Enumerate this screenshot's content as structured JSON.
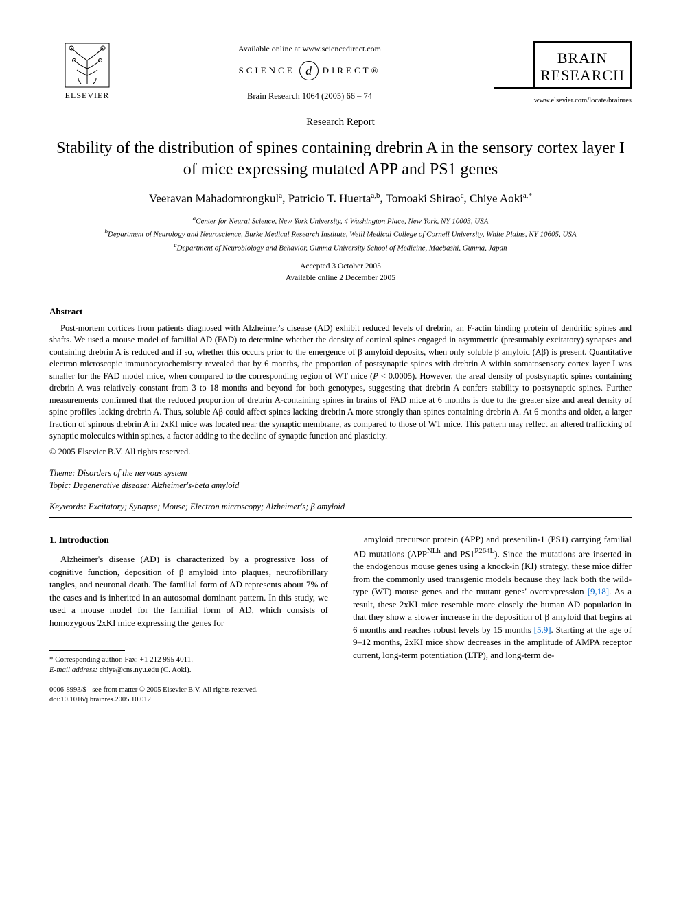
{
  "header": {
    "publisher_label": "ELSEVIER",
    "available_text": "Available online at www.sciencedirect.com",
    "sciencedirect_left": "SCIENCE",
    "sciencedirect_glyph": "d",
    "sciencedirect_right": "DIRECT®",
    "citation": "Brain Research 1064 (2005) 66 – 74",
    "journal_line1": "BRAIN",
    "journal_line2": "RESEARCH",
    "journal_url": "www.elsevier.com/locate/brainres"
  },
  "article": {
    "report_type": "Research Report",
    "title": "Stability of the distribution of spines containing drebrin A in the sensory cortex layer I of mice expressing mutated APP and PS1 genes",
    "authors_html": "Veeravan Mahadomrongkul<sup>a</sup>, Patricio T. Huerta<sup>a,b</sup>, Tomoaki Shirao<sup>c</sup>, Chiye Aoki<sup>a,*</sup>",
    "affiliations": [
      "aCenter for Neural Science, New York University, 4 Washington Place, New York, NY 10003, USA",
      "bDepartment of Neurology and Neuroscience, Burke Medical Research Institute, Weill Medical College of Cornell University, White Plains, NY 10605, USA",
      "cDepartment of Neurobiology and Behavior, Gunma University School of Medicine, Maebashi, Gunma, Japan"
    ],
    "accepted": "Accepted 3 October 2005",
    "available_online": "Available online 2 December 2005"
  },
  "abstract": {
    "heading": "Abstract",
    "body": "Post-mortem cortices from patients diagnosed with Alzheimer's disease (AD) exhibit reduced levels of drebrin, an F-actin binding protein of dendritic spines and shafts. We used a mouse model of familial AD (FAD) to determine whether the density of cortical spines engaged in asymmetric (presumably excitatory) synapses and containing drebrin A is reduced and if so, whether this occurs prior to the emergence of β amyloid deposits, when only soluble β amyloid (Aβ) is present. Quantitative electron microscopic immunocytochemistry revealed that by 6 months, the proportion of postsynaptic spines with drebrin A within somatosensory cortex layer I was smaller for the FAD model mice, when compared to the corresponding region of WT mice (P < 0.0005). However, the areal density of postsynaptic spines containing drebrin A was relatively constant from 3 to 18 months and beyond for both genotypes, suggesting that drebrin A confers stability to postsynaptic spines. Further measurements confirmed that the reduced proportion of drebrin A-containing spines in brains of FAD mice at 6 months is due to the greater size and areal density of spine profiles lacking drebrin A. Thus, soluble Aβ could affect spines lacking drebrin A more strongly than spines containing drebrin A. At 6 months and older, a larger fraction of spinous drebrin A in 2xKI mice was located near the synaptic membrane, as compared to those of WT mice. This pattern may reflect an altered trafficking of synaptic molecules within spines, a factor adding to the decline of synaptic function and plasticity.",
    "copyright": "© 2005 Elsevier B.V. All rights reserved."
  },
  "meta": {
    "theme_label": "Theme:",
    "theme_value": "Disorders of the nervous system",
    "topic_label": "Topic:",
    "topic_value": "Degenerative disease: Alzheimer's-beta amyloid",
    "keywords_label": "Keywords:",
    "keywords_value": "Excitatory; Synapse; Mouse; Electron microscopy; Alzheimer's; β amyloid"
  },
  "introduction": {
    "heading": "1. Introduction",
    "col1": "Alzheimer's disease (AD) is characterized by a progressive loss of cognitive function, deposition of β amyloid into plaques, neurofibrillary tangles, and neuronal death. The familial form of AD represents about 7% of the cases and is inherited in an autosomal dominant pattern. In this study, we used a mouse model for the familial form of AD, which consists of homozygous 2xKI mice expressing the genes for",
    "col2_a": "amyloid precursor protein (APP) and presenilin-1 (PS1) carrying familial AD mutations (APP",
    "col2_sup1": "NLh",
    "col2_b": " and PS1",
    "col2_sup2": "P264L",
    "col2_c": "). Since the mutations are inserted in the endogenous mouse genes using a knock-in (KI) strategy, these mice differ from the commonly used transgenic models because they lack both the wild-type (WT) mouse genes and the mutant genes' overexpression ",
    "col2_ref1": "[9,18]",
    "col2_d": ". As a result, these 2xKI mice resemble more closely the human AD population in that they show a slower increase in the deposition of β amyloid that begins at 6 months and reaches robust levels by 15 months ",
    "col2_ref2": "[5,9]",
    "col2_e": ". Starting at the age of 9–12 months, 2xKI mice show decreases in the amplitude of AMPA receptor current, long-term potentiation (LTP), and long-term de-"
  },
  "footnote": {
    "corr": "* Corresponding author. Fax: +1 212 995 4011.",
    "email_label": "E-mail address:",
    "email": "chiye@cns.nyu.edu (C. Aoki)."
  },
  "footline": {
    "line1": "0006-8993/$ - see front matter © 2005 Elsevier B.V. All rights reserved.",
    "line2": "doi:10.1016/j.brainres.2005.10.012"
  },
  "colors": {
    "text": "#000000",
    "link": "#0066cc",
    "background": "#ffffff"
  }
}
